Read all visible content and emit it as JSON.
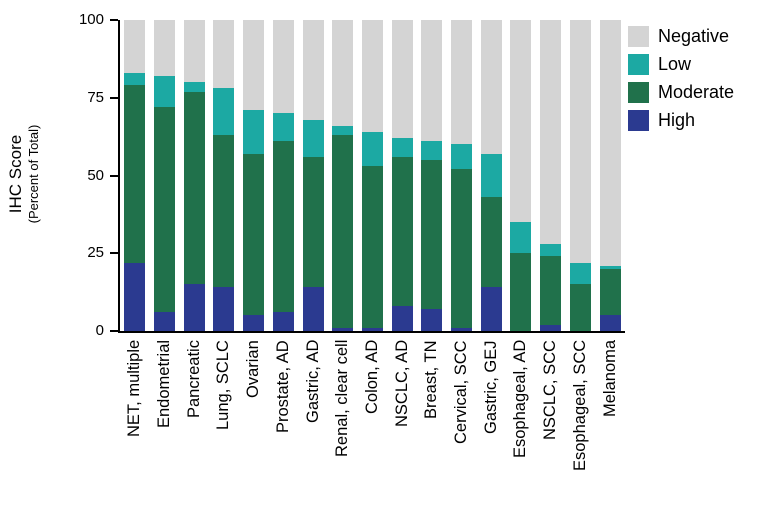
{
  "chart_data": {
    "type": "bar",
    "stacked": true,
    "title": "",
    "ylabel": "IHC Score",
    "ylabel_sub": "(Percent of Total)",
    "ylim": [
      0,
      100
    ],
    "yticks": [
      0,
      25,
      50,
      75,
      100
    ],
    "grid": false,
    "legend_position": "right",
    "legend_order": [
      "Negative",
      "Low",
      "Moderate",
      "High"
    ],
    "categories": [
      "NET, multiple",
      "Endometrial",
      "Pancreatic",
      "Lung, SCLC",
      "Ovarian",
      "Prostate, AD",
      "Gastric, AD",
      "Renal, clear cell",
      "Colon, AD",
      "NSCLC, AD",
      "Breast, TN",
      "Cervical, SCC",
      "Gastric, GEJ",
      "Esophageal, AD",
      "NSCLC, SCC",
      "Esophageal, SCC",
      "Melanoma"
    ],
    "series": [
      {
        "name": "High",
        "color": "#2b3a90",
        "values": [
          22,
          6,
          15,
          14,
          5,
          6,
          14,
          1,
          1,
          8,
          7,
          1,
          14,
          0,
          2,
          0,
          5
        ]
      },
      {
        "name": "Moderate",
        "color": "#20714b",
        "values": [
          57,
          66,
          62,
          49,
          52,
          55,
          42,
          62,
          52,
          48,
          48,
          51,
          29,
          25,
          22,
          15,
          15
        ]
      },
      {
        "name": "Low",
        "color": "#1ca9a3",
        "values": [
          4,
          10,
          3,
          15,
          14,
          9,
          12,
          3,
          11,
          6,
          6,
          8,
          14,
          10,
          4,
          7,
          1
        ]
      },
      {
        "name": "Negative",
        "color": "#d4d4d4",
        "values": [
          17,
          18,
          20,
          22,
          29,
          30,
          32,
          34,
          36,
          38,
          39,
          40,
          43,
          65,
          72,
          78,
          79
        ]
      }
    ]
  }
}
